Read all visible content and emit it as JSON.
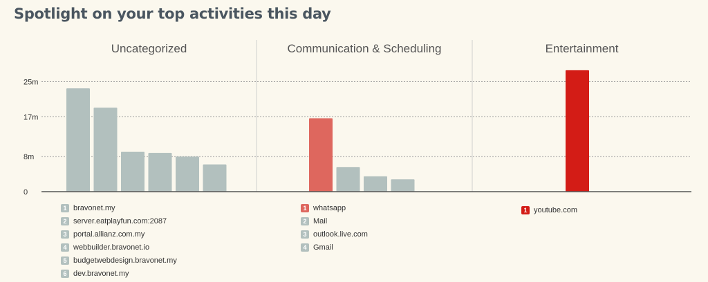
{
  "page": {
    "title": "Spotlight on your top activities this day"
  },
  "colors": {
    "grey": "#b2c0be",
    "coral": "#de675e",
    "red": "#d31c16",
    "background": "#fbf8ee"
  },
  "chart_data": {
    "type": "bar",
    "y_ticks": [
      {
        "value": 0,
        "label": "0"
      },
      {
        "value": 8,
        "label": "8m"
      },
      {
        "value": 17,
        "label": "17m"
      },
      {
        "value": 25,
        "label": "25m"
      }
    ],
    "ylim": [
      0,
      29
    ],
    "grid": true,
    "categories": [
      {
        "name": "Uncategorized",
        "bars": [
          {
            "rank": "1",
            "label": "bravonet.my",
            "value": 23.5,
            "color": "#b2c0be"
          },
          {
            "rank": "2",
            "label": "server.eatplayfun.com:2087",
            "value": 19.1,
            "color": "#b2c0be"
          },
          {
            "rank": "3",
            "label": "portal.allianz.com.my",
            "value": 9.1,
            "color": "#b2c0be"
          },
          {
            "rank": "4",
            "label": "webbuilder.bravonet.io",
            "value": 8.8,
            "color": "#b2c0be"
          },
          {
            "rank": "5",
            "label": "budgetwebdesign.bravonet.my",
            "value": 8.0,
            "color": "#b2c0be"
          },
          {
            "rank": "6",
            "label": "dev.bravonet.my",
            "value": 6.2,
            "color": "#b2c0be"
          }
        ]
      },
      {
        "name": "Communication & Scheduling",
        "bars": [
          {
            "rank": "1",
            "label": "whatsapp",
            "value": 16.7,
            "color": "#de675e"
          },
          {
            "rank": "2",
            "label": "Mail",
            "value": 5.6,
            "color": "#b2c0be"
          },
          {
            "rank": "3",
            "label": "outlook.live.com",
            "value": 3.5,
            "color": "#b2c0be"
          },
          {
            "rank": "4",
            "label": "Gmail",
            "value": 2.8,
            "color": "#b2c0be"
          }
        ]
      },
      {
        "name": "Entertainment",
        "bars": [
          {
            "rank": "1",
            "label": "youtube.com",
            "value": 27.6,
            "color": "#d31c16"
          }
        ]
      }
    ]
  }
}
